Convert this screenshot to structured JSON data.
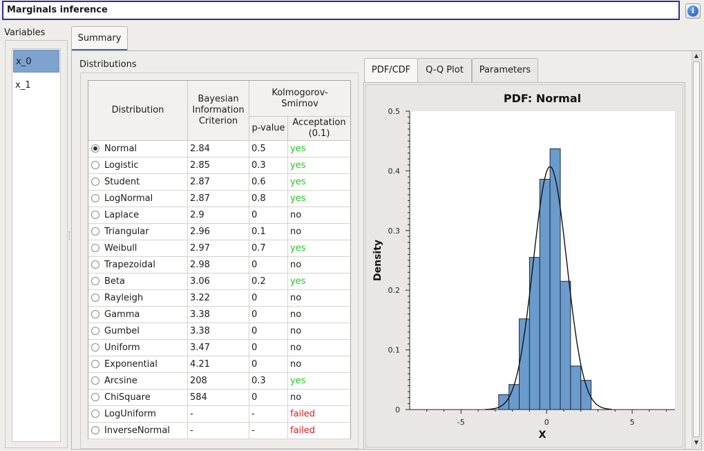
{
  "window": {
    "title": "Marginals inference",
    "info_icon": "info-icon"
  },
  "variables": {
    "label": "Variables",
    "items": [
      "x_0",
      "x_1"
    ],
    "selected": "x_0"
  },
  "tabs": {
    "summary": "Summary"
  },
  "distributions": {
    "label": "Distributions",
    "headers": {
      "distribution": "Distribution",
      "bic": "Bayesian Information Criterion",
      "ks": "Kolmogorov-Smirnov",
      "pvalue": "p-value",
      "acceptance": "Acceptation (0.1)"
    },
    "selected": "Normal",
    "rows": [
      {
        "name": "Normal",
        "bic": "2.84",
        "pvalue": "0.5",
        "acceptance": "yes"
      },
      {
        "name": "Logistic",
        "bic": "2.85",
        "pvalue": "0.3",
        "acceptance": "yes"
      },
      {
        "name": "Student",
        "bic": "2.87",
        "pvalue": "0.6",
        "acceptance": "yes"
      },
      {
        "name": "LogNormal",
        "bic": "2.87",
        "pvalue": "0.8",
        "acceptance": "yes"
      },
      {
        "name": "Laplace",
        "bic": "2.9",
        "pvalue": "0",
        "acceptance": "no"
      },
      {
        "name": "Triangular",
        "bic": "2.96",
        "pvalue": "0.1",
        "acceptance": "no"
      },
      {
        "name": "Weibull",
        "bic": "2.97",
        "pvalue": "0.7",
        "acceptance": "yes"
      },
      {
        "name": "Trapezoidal",
        "bic": "2.98",
        "pvalue": "0",
        "acceptance": "no"
      },
      {
        "name": "Beta",
        "bic": "3.06",
        "pvalue": "0.2",
        "acceptance": "yes"
      },
      {
        "name": "Rayleigh",
        "bic": "3.22",
        "pvalue": "0",
        "acceptance": "no"
      },
      {
        "name": "Gamma",
        "bic": "3.38",
        "pvalue": "0",
        "acceptance": "no"
      },
      {
        "name": "Gumbel",
        "bic": "3.38",
        "pvalue": "0",
        "acceptance": "no"
      },
      {
        "name": "Uniform",
        "bic": "3.47",
        "pvalue": "0",
        "acceptance": "no"
      },
      {
        "name": "Exponential",
        "bic": "4.21",
        "pvalue": "0",
        "acceptance": "no"
      },
      {
        "name": "Arcsine",
        "bic": "208",
        "pvalue": "0.3",
        "acceptance": "yes"
      },
      {
        "name": "ChiSquare",
        "bic": "584",
        "pvalue": "0",
        "acceptance": "no"
      },
      {
        "name": "LogUniform",
        "bic": "-",
        "pvalue": "-",
        "acceptance": "failed"
      },
      {
        "name": "InverseNormal",
        "bic": "-",
        "pvalue": "-",
        "acceptance": "failed"
      }
    ]
  },
  "plot_tabs": [
    "PDF/CDF",
    "Q-Q Plot",
    "Parameters"
  ],
  "colors": {
    "yes": "#1fc91f",
    "failed": "#e41b1b",
    "histogram": "#6a9bcc",
    "selection": "#7ea3cf",
    "accent": "#2f2d9a"
  },
  "chart_data": {
    "type": "bar",
    "title": "PDF: Normal",
    "xlabel": "X",
    "ylabel": "Density",
    "xlim": [
      -8.0,
      7.5
    ],
    "ylim": [
      0,
      0.5
    ],
    "xticks": [
      -5,
      0,
      5
    ],
    "yticks": [
      0,
      0.1,
      0.2,
      0.3,
      0.4,
      0.5
    ],
    "grid": false,
    "histogram": {
      "bin_edges": [
        -2.8,
        -2.2,
        -1.6,
        -1.0,
        -0.4,
        0.2,
        0.8,
        1.4,
        2.0,
        2.6
      ],
      "density": [
        0.025,
        0.042,
        0.152,
        0.255,
        0.386,
        0.437,
        0.215,
        0.073,
        0.049
      ]
    },
    "pdf_curve": {
      "distribution": "Normal",
      "mean": 0.2,
      "std": 0.98,
      "x_range": [
        -3.6,
        3.8
      ]
    }
  }
}
